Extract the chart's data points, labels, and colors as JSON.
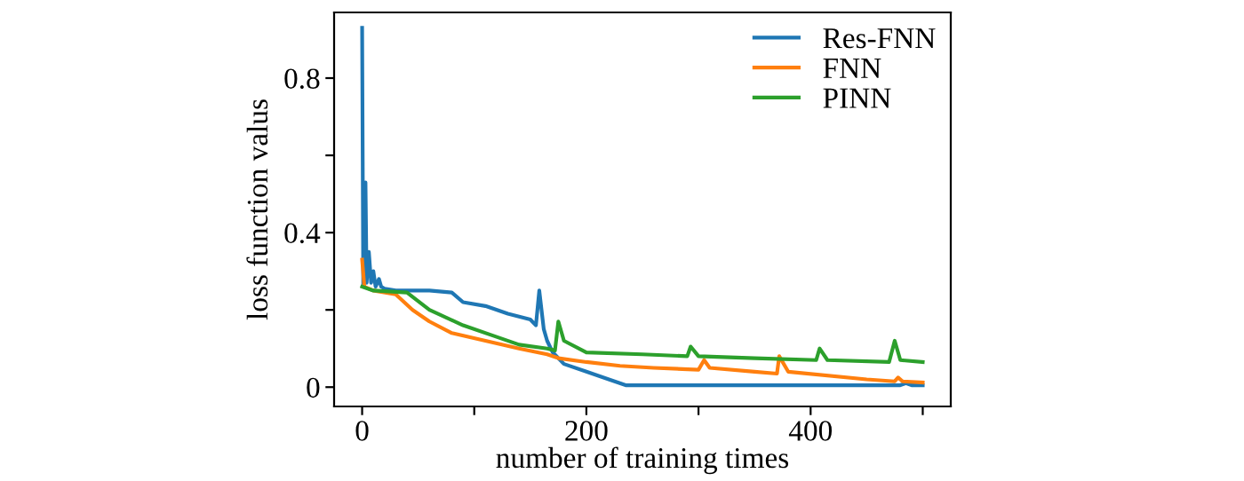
{
  "chart_data": {
    "type": "line",
    "xlabel": "number of training times",
    "ylabel": "loss function valus",
    "xlim": [
      -25,
      525
    ],
    "ylim": [
      -0.05,
      0.97
    ],
    "xticks": [
      0,
      {
        "value": 100,
        "label": null
      },
      200,
      {
        "value": 300,
        "label": null
      },
      400,
      {
        "value": 500,
        "label": null
      }
    ],
    "yticks": [
      0,
      {
        "value": 0.2,
        "label": null
      },
      0.4,
      {
        "value": 0.6,
        "label": null
      },
      0.8
    ],
    "grid": false,
    "legend": "top right",
    "series": [
      {
        "name": "Res-FNN",
        "color": "#1f77b4",
        "x": [
          0,
          1,
          3,
          4,
          6,
          8,
          10,
          12,
          15,
          17,
          20,
          30,
          60,
          80,
          90,
          110,
          130,
          150,
          155,
          158,
          162,
          165,
          170,
          180,
          200,
          220,
          235,
          480,
          485,
          490,
          500
        ],
        "values": [
          0.93,
          0.26,
          0.53,
          0.27,
          0.35,
          0.27,
          0.3,
          0.26,
          0.28,
          0.26,
          0.255,
          0.25,
          0.25,
          0.245,
          0.22,
          0.21,
          0.19,
          0.175,
          0.16,
          0.25,
          0.15,
          0.12,
          0.09,
          0.06,
          0.04,
          0.02,
          0.005,
          0.005,
          0.01,
          0.005,
          0.005
        ]
      },
      {
        "name": "FNN",
        "color": "#ff7f0e",
        "x": [
          0,
          2,
          10,
          30,
          45,
          60,
          80,
          110,
          140,
          165,
          175,
          200,
          230,
          260,
          300,
          305,
          310,
          350,
          370,
          372,
          380,
          450,
          475,
          478,
          482,
          500
        ],
        "values": [
          0.33,
          0.26,
          0.25,
          0.24,
          0.2,
          0.17,
          0.14,
          0.12,
          0.1,
          0.085,
          0.075,
          0.065,
          0.055,
          0.05,
          0.045,
          0.07,
          0.05,
          0.04,
          0.035,
          0.08,
          0.04,
          0.02,
          0.015,
          0.025,
          0.015,
          0.012
        ]
      },
      {
        "name": "PINN",
        "color": "#2ca02c",
        "x": [
          0,
          10,
          40,
          60,
          90,
          120,
          140,
          165,
          172,
          175,
          180,
          200,
          250,
          290,
          293,
          300,
          350,
          405,
          408,
          415,
          470,
          475,
          480,
          500
        ],
        "values": [
          0.26,
          0.25,
          0.245,
          0.2,
          0.16,
          0.13,
          0.11,
          0.1,
          0.095,
          0.17,
          0.12,
          0.09,
          0.085,
          0.08,
          0.105,
          0.08,
          0.075,
          0.07,
          0.1,
          0.07,
          0.065,
          0.12,
          0.07,
          0.065
        ]
      }
    ]
  }
}
